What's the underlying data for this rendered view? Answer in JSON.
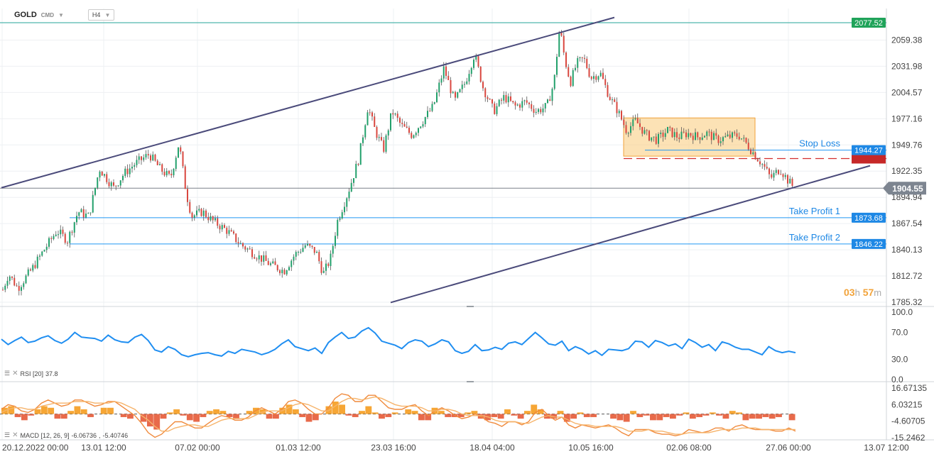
{
  "header": {
    "symbol": "GOLD",
    "exchange": "CMD",
    "timeframe": "H4"
  },
  "countdown": {
    "hours": "03",
    "h": "h",
    "minutes": "57",
    "m": "m"
  },
  "colors": {
    "up": "#22a06b",
    "down": "#d9473f",
    "rsi": "#1f8ef1",
    "macd_up": "#f6a635",
    "macd_down": "#e86a4a",
    "hline": "#2196f3",
    "resistance": "#26a69a",
    "channel": "#4a4a7a",
    "price_tag": "#7d8590",
    "stop_tag": "#c62828",
    "zone": "#fbd38d"
  },
  "chart_data": [
    {
      "type": "candlestick",
      "instrument": "GOLD",
      "timeframe": "H4",
      "y_ticks": [
        "2059.38",
        "2031.98",
        "2004.57",
        "1977.16",
        "1949.76",
        "1922.35",
        "1894.94",
        "1867.54",
        "1840.13",
        "1812.72",
        "1785.32"
      ],
      "ylim": [
        1785.32,
        2077.52
      ],
      "x_ticks": [
        "20.12.2022  00:00",
        "13.01  12:00",
        "07.02  00:00",
        "01.03  12:00",
        "23.03  16:00",
        "18.04  04:00",
        "10.05  16:00",
        "02.06  08:00",
        "27.06  00:00",
        "13.07  12:00"
      ],
      "price_path": [
        [
          0,
          1790
        ],
        [
          12,
          1815
        ],
        [
          25,
          1800
        ],
        [
          45,
          1820
        ],
        [
          62,
          1840
        ],
        [
          80,
          1860
        ],
        [
          95,
          1850
        ],
        [
          110,
          1880
        ],
        [
          125,
          1875
        ],
        [
          140,
          1925
        ],
        [
          160,
          1905
        ],
        [
          175,
          1920
        ],
        [
          190,
          1930
        ],
        [
          210,
          1940
        ],
        [
          225,
          1925
        ],
        [
          240,
          1915
        ],
        [
          252,
          1952
        ],
        [
          262,
          1900
        ],
        [
          270,
          1875
        ],
        [
          285,
          1880
        ],
        [
          300,
          1870
        ],
        [
          320,
          1860
        ],
        [
          340,
          1845
        ],
        [
          360,
          1835
        ],
        [
          380,
          1825
        ],
        [
          400,
          1818
        ],
        [
          415,
          1835
        ],
        [
          430,
          1845
        ],
        [
          445,
          1838
        ],
        [
          455,
          1815
        ],
        [
          465,
          1830
        ],
        [
          475,
          1870
        ],
        [
          490,
          1900
        ],
        [
          505,
          1935
        ],
        [
          518,
          1990
        ],
        [
          528,
          1965
        ],
        [
          540,
          1945
        ],
        [
          552,
          1985
        ],
        [
          565,
          1970
        ],
        [
          580,
          1960
        ],
        [
          595,
          1975
        ],
        [
          610,
          1990
        ],
        [
          625,
          2030
        ],
        [
          640,
          1995
        ],
        [
          655,
          2015
        ],
        [
          668,
          2045
        ],
        [
          680,
          2010
        ],
        [
          695,
          1985
        ],
        [
          710,
          2000
        ],
        [
          725,
          1990
        ],
        [
          740,
          1995
        ],
        [
          755,
          1985
        ],
        [
          770,
          1990
        ],
        [
          780,
          2015
        ],
        [
          788,
          2073
        ],
        [
          795,
          2040
        ],
        [
          803,
          2015
        ],
        [
          812,
          2035
        ],
        [
          822,
          2040
        ],
        [
          832,
          2020
        ],
        [
          845,
          2025
        ],
        [
          858,
          2000
        ],
        [
          870,
          1985
        ],
        [
          882,
          1965
        ],
        [
          895,
          1975
        ],
        [
          910,
          1960
        ],
        [
          925,
          1955
        ],
        [
          940,
          1965
        ],
        [
          955,
          1958
        ],
        [
          968,
          1962
        ],
        [
          982,
          1958
        ],
        [
          995,
          1962
        ],
        [
          1010,
          1955
        ],
        [
          1025,
          1958
        ],
        [
          1040,
          1960
        ],
        [
          1052,
          1950
        ],
        [
          1062,
          1940
        ],
        [
          1075,
          1928
        ],
        [
          1085,
          1915
        ],
        [
          1098,
          1925
        ],
        [
          1110,
          1912
        ],
        [
          1118,
          1905
        ]
      ],
      "last_price": "1904.55",
      "horizontal_levels": [
        {
          "label": "",
          "value": "2077.52",
          "style": "resistance"
        },
        {
          "label": "Stop Loss",
          "value": "1944.27"
        },
        {
          "label": "Take Profit 1",
          "value": "1873.68"
        },
        {
          "label": "Take Profit 2",
          "value": "1846.22"
        }
      ],
      "entry_level": 1935.5,
      "consolidation_zone": {
        "from": 1938,
        "to": 1978
      },
      "channel": {
        "upper": [
          [
            2,
            1905
          ],
          [
            865,
            2083
          ]
        ],
        "lower": [
          [
            550,
            1785
          ],
          [
            1225,
            1928
          ]
        ]
      }
    },
    {
      "type": "line",
      "indicator": "RSI",
      "label": "RSI [20]",
      "value": "37.8",
      "y_ticks": [
        "100.0",
        "70.0",
        "30.0",
        "0.0"
      ],
      "ylim": [
        0,
        100
      ],
      "values": [
        60,
        52,
        58,
        63,
        55,
        57,
        62,
        65,
        58,
        54,
        60,
        70,
        63,
        62,
        61,
        57,
        66,
        59,
        56,
        55,
        63,
        67,
        58,
        44,
        41,
        49,
        45,
        37,
        34,
        37,
        39,
        40,
        37,
        35,
        42,
        39,
        45,
        43,
        41,
        37,
        40,
        45,
        53,
        59,
        49,
        46,
        43,
        47,
        39,
        55,
        63,
        70,
        61,
        63,
        72,
        77,
        69,
        57,
        54,
        51,
        46,
        55,
        59,
        57,
        49,
        53,
        59,
        56,
        43,
        39,
        42,
        52,
        43,
        44,
        48,
        45,
        54,
        56,
        52,
        61,
        70,
        62,
        53,
        51,
        57,
        43,
        49,
        45,
        38,
        43,
        36,
        45,
        44,
        43,
        46,
        57,
        56,
        48,
        58,
        55,
        50,
        53,
        46,
        60,
        55,
        48,
        52,
        43,
        56,
        53,
        48,
        45,
        45,
        41,
        37,
        49,
        43,
        40,
        42,
        40
      ]
    },
    {
      "type": "histogram+lines",
      "indicator": "MACD",
      "label": "MACD [12, 26, 9]",
      "values_label": [
        "-6.06736",
        "-5.40746"
      ],
      "y_ticks": [
        "16.67135",
        "6.03215",
        "-4.60705",
        "-15.2462"
      ],
      "ylim": [
        -15.2462,
        16.67135
      ],
      "histogram": [
        4,
        5,
        -2,
        -4,
        -1,
        3,
        5,
        4,
        -3,
        -3,
        2,
        5,
        3,
        -2,
        0,
        4,
        4,
        0,
        -2,
        -3,
        0,
        -5,
        -8,
        -10,
        -3,
        1,
        3,
        -1,
        -4,
        -5,
        -2,
        2,
        3,
        2,
        -2,
        -3,
        0,
        2,
        4,
        3,
        -3,
        -3,
        4,
        6,
        3,
        -2,
        -5,
        -4,
        0,
        5,
        8,
        6,
        -1,
        -2,
        2,
        5,
        1,
        -3,
        -2,
        1,
        0,
        3,
        2,
        -4,
        -4,
        4,
        2,
        -2,
        -2,
        -2,
        1,
        2,
        -3,
        -4,
        -2,
        -3,
        3,
        -1,
        -3,
        2,
        6,
        3,
        -3,
        -3,
        2,
        -5,
        -3,
        1,
        -2,
        -2,
        0,
        0,
        -3,
        -4,
        -5,
        2,
        -2,
        -1,
        -4,
        -4,
        -2,
        -3,
        -1,
        1,
        -3,
        -2,
        -1,
        1,
        -1,
        -3,
        2,
        1,
        -4,
        -3,
        -3,
        -2,
        -3,
        -2,
        0,
        -4
      ],
      "macd": [
        3,
        6,
        5,
        2,
        1,
        3,
        7,
        9,
        7,
        5,
        6,
        9,
        9,
        7,
        5,
        6,
        8,
        8,
        5,
        2,
        -1,
        -6,
        -12,
        -15,
        -13,
        -9,
        -5,
        -5,
        -7,
        -9,
        -9,
        -6,
        -3,
        -1,
        -2,
        -4,
        -4,
        -2,
        2,
        4,
        2,
        0,
        3,
        8,
        9,
        7,
        3,
        0,
        0,
        4,
        10,
        13,
        12,
        8,
        8,
        12,
        12,
        8,
        4,
        3,
        3,
        5,
        6,
        2,
        -1,
        2,
        4,
        2,
        -1,
        -3,
        -2,
        0,
        -2,
        -5,
        -6,
        -8,
        -5,
        -5,
        -7,
        -5,
        1,
        3,
        -1,
        -4,
        -2,
        -7,
        -9,
        -7,
        -8,
        -9,
        -8,
        -7,
        -9,
        -12,
        -14,
        -10,
        -10,
        -10,
        -12,
        -13,
        -13,
        -14,
        -13,
        -10,
        -11,
        -12,
        -11,
        -9,
        -9,
        -11,
        -8,
        -7,
        -9,
        -10,
        -10,
        -10,
        -11,
        -11,
        -9,
        -11
      ],
      "signal": [
        1,
        3,
        4,
        4,
        3,
        3,
        5,
        6,
        7,
        7,
        7,
        8,
        8,
        8,
        7,
        7,
        7,
        8,
        7,
        5,
        3,
        -1,
        -4,
        -8,
        -11,
        -11,
        -9,
        -8,
        -7,
        -7,
        -8,
        -8,
        -6,
        -4,
        -3,
        -3,
        -3,
        -3,
        -1,
        1,
        2,
        2,
        2,
        4,
        6,
        7,
        6,
        4,
        2,
        2,
        5,
        8,
        10,
        10,
        9,
        10,
        11,
        10,
        8,
        6,
        5,
        5,
        5,
        4,
        2,
        2,
        3,
        3,
        2,
        0,
        -1,
        -1,
        -1,
        -2,
        -4,
        -5,
        -5,
        -5,
        -6,
        -6,
        -4,
        -2,
        -1,
        -2,
        -2,
        -4,
        -6,
        -7,
        -7,
        -8,
        -8,
        -8,
        -8,
        -9,
        -11,
        -11,
        -11,
        -10,
        -11,
        -11,
        -12,
        -13,
        -13,
        -12,
        -12,
        -12,
        -12,
        -11,
        -10,
        -10,
        -10,
        -9,
        -9,
        -9,
        -10,
        -10,
        -10,
        -10,
        -10,
        -10
      ]
    }
  ]
}
